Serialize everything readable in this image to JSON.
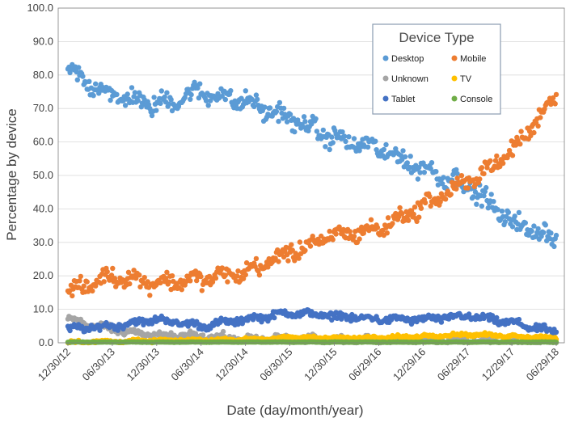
{
  "chart_data": {
    "type": "scatter",
    "title": "",
    "xlabel": "Date (day/month/year)",
    "ylabel": "Percentage by device",
    "ylim": [
      0,
      100
    ],
    "x_ticks": [
      "12/30/12",
      "06/30/13",
      "12/30/13",
      "06/30/14",
      "12/30/14",
      "06/30/15",
      "12/30/15",
      "06/29/16",
      "12/29/16",
      "06/29/17",
      "12/29/17",
      "06/29/18"
    ],
    "y_ticks": [
      "0.0",
      "10.0",
      "20.0",
      "30.0",
      "40.0",
      "50.0",
      "60.0",
      "70.0",
      "80.0",
      "90.0",
      "100.0"
    ],
    "legend": {
      "title": "Device Type",
      "position": "top-right",
      "entries": [
        {
          "name": "Desktop",
          "color": "#5b9bd5"
        },
        {
          "name": "Mobile",
          "color": "#ed7d31"
        },
        {
          "name": "Unknown",
          "color": "#a5a5a5"
        },
        {
          "name": "TV",
          "color": "#ffc000"
        },
        {
          "name": "Tablet",
          "color": "#4472c4"
        },
        {
          "name": "Console",
          "color": "#70ad47"
        }
      ]
    },
    "series": [
      {
        "name": "Desktop",
        "color": "#5b9bd5",
        "x_periods": [
          0,
          1,
          2,
          3,
          4,
          5,
          6,
          7,
          8,
          9,
          10,
          11
        ],
        "values": [
          81,
          74,
          71,
          75,
          72,
          67,
          61,
          58,
          52,
          47,
          36,
          31
        ],
        "spread": 4
      },
      {
        "name": "Mobile",
        "color": "#ed7d31",
        "x_periods": [
          0,
          1,
          2,
          3,
          4,
          5,
          6,
          7,
          8,
          9,
          10,
          11
        ],
        "values": [
          15,
          20,
          18,
          19,
          21,
          27,
          32,
          34,
          41,
          48,
          57,
          74
        ],
        "spread": 3.5
      },
      {
        "name": "Tablet",
        "color": "#4472c4",
        "x_periods": [
          0,
          1,
          2,
          3,
          4,
          5,
          6,
          7,
          8,
          9,
          10,
          11
        ],
        "values": [
          4,
          5,
          7,
          5,
          7,
          9,
          8,
          7,
          7,
          8,
          6,
          3
        ],
        "spread": 1.5
      },
      {
        "name": "Unknown",
        "color": "#a5a5a5",
        "x_periods": [
          0,
          1,
          2,
          3,
          4,
          5,
          6,
          7,
          8,
          9,
          10,
          11
        ],
        "values": [
          7,
          4,
          2,
          2,
          1,
          1,
          1,
          0.5,
          0.5,
          0.5,
          0.3,
          0.3
        ],
        "spread": 1.5
      },
      {
        "name": "TV",
        "color": "#ffc000",
        "x_periods": [
          0,
          1,
          2,
          3,
          4,
          5,
          6,
          7,
          8,
          9,
          10,
          11
        ],
        "values": [
          0.2,
          0.4,
          0.6,
          0.8,
          1,
          1.5,
          1.5,
          1.5,
          2,
          2.5,
          2,
          1.5
        ],
        "spread": 0.6
      },
      {
        "name": "Console",
        "color": "#70ad47",
        "x_periods": [
          0,
          1,
          2,
          3,
          4,
          5,
          6,
          7,
          8,
          9,
          10,
          11
        ],
        "values": [
          0.2,
          0.2,
          0.2,
          0.2,
          0.2,
          0.2,
          0.2,
          0.2,
          0.2,
          0.2,
          0.2,
          0.2
        ],
        "spread": 0.1
      }
    ]
  }
}
